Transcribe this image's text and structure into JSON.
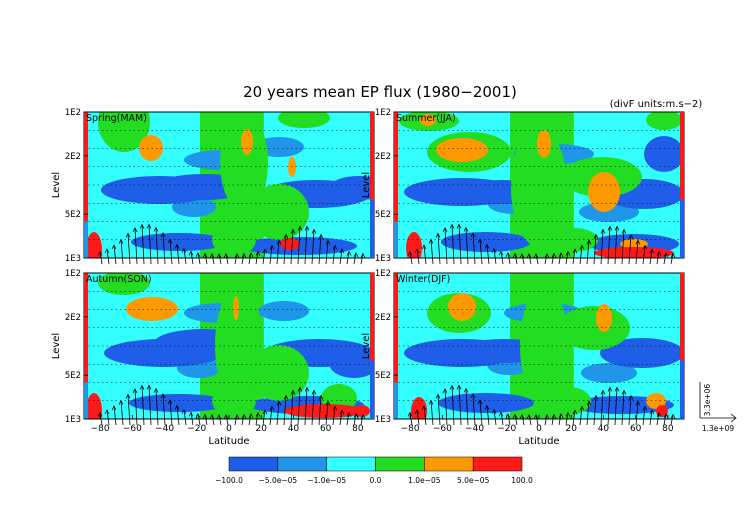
{
  "chart_data": {
    "type": "heatmap",
    "title": "20 years mean EP flux (1980−2001)",
    "units_note": "(divF units:m.s−2)",
    "ylabel": "Level",
    "xlabel": "Latitude",
    "x_ticks": [
      "−80",
      "−60",
      "−40",
      "−20",
      "0",
      "20",
      "40",
      "60",
      "80"
    ],
    "y_ticks": [
      "1E2",
      "2E2",
      "5E2",
      "1E3"
    ],
    "xlim": [
      -90,
      90
    ],
    "ylim_hPa": [
      1000,
      100
    ],
    "y_scale": "log (pressure)",
    "vector_scale": {
      "vertical": "3.3e+06",
      "horizontal": "1.3e+09"
    },
    "colorbar": {
      "labels": [
        "−100.0",
        "−5.0e−05",
        "−1.0e−05",
        "0.0",
        "1.0e−05",
        "5.0e−05",
        "100.0"
      ],
      "bounds": [
        -100,
        -5e-05,
        -1e-05,
        0,
        1e-05,
        5e-05,
        100
      ],
      "colors": [
        "#1f5ee8",
        "#1f96ea",
        "#33ffff",
        "#22dd22",
        "#ff9900",
        "#ff1a1a"
      ]
    },
    "panels": [
      {
        "name": "Spring(MAM)"
      },
      {
        "name": "Summer(JJA)"
      },
      {
        "name": "Autumn(SON)"
      },
      {
        "name": "Winter(DJF)"
      }
    ]
  }
}
